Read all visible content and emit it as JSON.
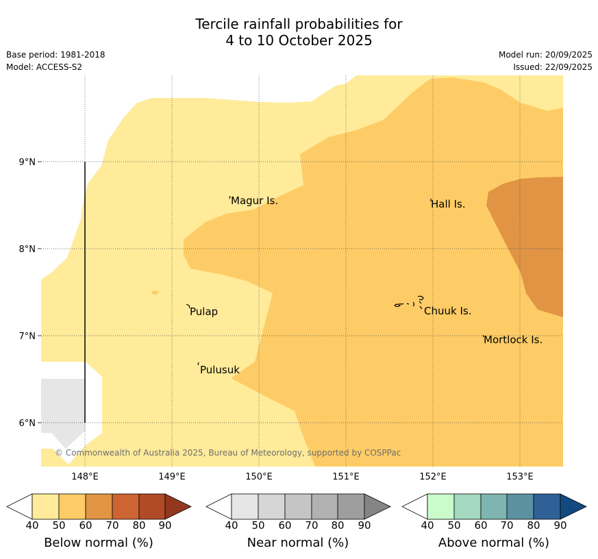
{
  "title": {
    "line1": "Tercile rainfall probabilities for",
    "line2": "4 to 10 October 2025"
  },
  "meta": {
    "base_period": "Base period: 1981-2018",
    "model": "Model: ACCESS-S2",
    "model_run": "Model run: 20/09/2025",
    "issued": "Issued: 22/09/2025"
  },
  "map": {
    "lat_labels": [
      "9°N",
      "8°N",
      "7°N",
      "6°N"
    ],
    "lon_labels": [
      "148°E",
      "149°E",
      "150°E",
      "151°E",
      "152°E",
      "153°E"
    ],
    "places": [
      "Magur Is.",
      "Hall Is.",
      "Pulap",
      "Chuuk Is.",
      "Mortlock Is.",
      "Pulusuk"
    ],
    "copyright": "© Commonwealth of Australia 2025, Bureau of Meteorology, supported by COSPPac"
  },
  "legend": {
    "ticks": [
      "40",
      "50",
      "60",
      "70",
      "80",
      "90"
    ],
    "below": {
      "label": "Below normal (%)",
      "colors": [
        "#ffffff",
        "#ffeb9a",
        "#fecc66",
        "#e09444",
        "#cd6433",
        "#b14b25",
        "#93371f"
      ]
    },
    "near": {
      "label": "Near normal (%)",
      "colors": [
        "#ffffff",
        "#e6e6e6",
        "#d6d6d6",
        "#c5c5c5",
        "#b2b2b2",
        "#9e9e9e",
        "#858585"
      ]
    },
    "above": {
      "label": "Above normal (%)",
      "colors": [
        "#ffffff",
        "#c9fbcb",
        "#a3d9be",
        "#7fb5b0",
        "#5c91a2",
        "#2f6196",
        "#114a80"
      ]
    }
  }
}
